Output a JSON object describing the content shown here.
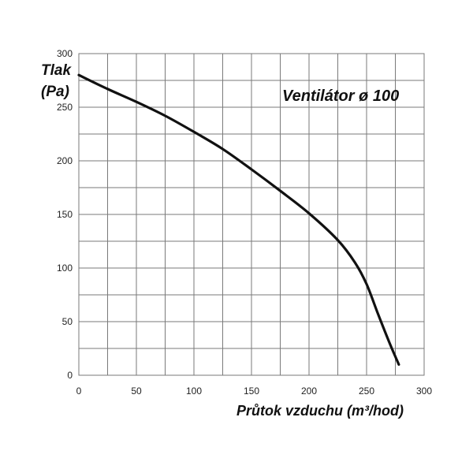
{
  "chart_data": {
    "type": "line",
    "title": "Ventilátor ø 100",
    "ylabel_line1": "Tlak",
    "ylabel_line2": "(Pa)",
    "xlabel": "Průtok vzduchu (m³/hod)",
    "xlim": [
      0,
      300
    ],
    "ylim": [
      0,
      300
    ],
    "x_ticks": [
      0,
      50,
      100,
      150,
      200,
      250,
      300
    ],
    "y_ticks": [
      0,
      50,
      100,
      150,
      200,
      250,
      300
    ],
    "grid": true,
    "series": [
      {
        "x": [
          0,
          25,
          50,
          75,
          100,
          125,
          150,
          175,
          200,
          225,
          240,
          250,
          260,
          270,
          278
        ],
        "y": [
          280,
          267,
          255,
          242,
          227,
          211,
          192,
          172,
          151,
          126,
          105,
          85,
          57,
          30,
          10
        ]
      }
    ]
  }
}
